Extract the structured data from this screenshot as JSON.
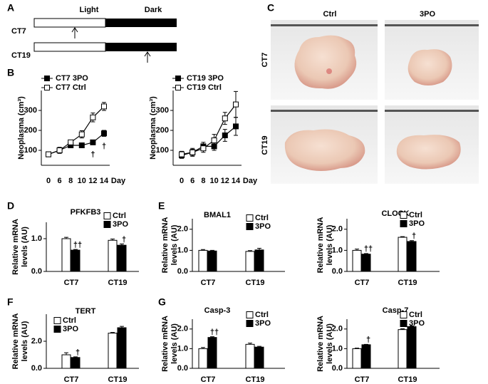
{
  "panel_a": {
    "letter": "A",
    "light": "Light",
    "dark": "Dark",
    "rows": [
      "CT7",
      "CT19"
    ]
  },
  "panel_c": {
    "letter": "C",
    "columns": [
      "Ctrl",
      "3PO"
    ],
    "rows": [
      "CT7",
      "CT19"
    ]
  },
  "letters": [
    "B",
    "D",
    "E",
    "F",
    "G"
  ],
  "chart_data": [
    {
      "type": "line",
      "categories": [
        "0",
        "6",
        "8",
        "10",
        "12",
        "14"
      ],
      "xlabel": "Day",
      "ylabel": "Neoplasma (cm³)",
      "ylim": [
        25,
        400
      ],
      "yticks": [
        100,
        200,
        300
      ],
      "series": [
        {
          "name": "CT7 3PO",
          "color": "#000000",
          "values": [
            80,
            100,
            125,
            125,
            140,
            185
          ],
          "errors": [
            8,
            12,
            12,
            10,
            12,
            15
          ]
        },
        {
          "name": "CT7 Ctrl",
          "color": "#ffffff",
          "values": [
            80,
            100,
            140,
            180,
            265,
            320
          ],
          "errors": [
            8,
            15,
            12,
            18,
            22,
            20
          ]
        }
      ],
      "annotations": [
        "†",
        "†"
      ]
    },
    {
      "type": "line",
      "categories": [
        "0",
        "6",
        "8",
        "10",
        "12",
        "14"
      ],
      "xlabel": "Day",
      "ylabel": "Neoplasma (cm³)",
      "ylim": [
        25,
        400
      ],
      "yticks": [
        100,
        200,
        300
      ],
      "series": [
        {
          "name": "CT19 3PO",
          "color": "#000000",
          "values": [
            75,
            90,
            120,
            120,
            175,
            220
          ],
          "errors": [
            15,
            15,
            20,
            20,
            30,
            45
          ]
        },
        {
          "name": "CT19 Ctrl",
          "color": "#ffffff",
          "values": [
            80,
            90,
            110,
            150,
            260,
            330
          ],
          "errors": [
            15,
            20,
            20,
            30,
            30,
            65
          ]
        }
      ],
      "annotations": []
    },
    {
      "type": "bar",
      "title": "PFKFB3",
      "ylabel": [
        "Relative mRNA",
        "levels (AU)"
      ],
      "categories": [
        "CT7",
        "CT19"
      ],
      "ylim": [
        0,
        1.5
      ],
      "yticks": [
        {
          "value": 0,
          "label": "0.0"
        },
        {
          "value": 1,
          "label": "1.0"
        }
      ],
      "series": [
        {
          "name": "Ctrl",
          "color": "#ffffff",
          "values": [
            1.0,
            0.95
          ],
          "errors": [
            0.04,
            0.04
          ]
        },
        {
          "name": "3PO",
          "color": "#000000",
          "values": [
            0.65,
            0.8
          ],
          "errors": [
            0.02,
            0.04
          ]
        }
      ],
      "annotations": [
        "††",
        "†"
      ]
    },
    {
      "type": "bar",
      "title": "BMAL1",
      "ylabel": [
        "Relative mRNA",
        "levels (AU)"
      ],
      "categories": [
        "CT7",
        "CT19"
      ],
      "ylim": [
        0,
        2.5
      ],
      "yticks": [
        {
          "value": 0,
          "label": "0.0"
        },
        {
          "value": 1,
          "label": "1.0"
        },
        {
          "value": 2,
          "label": "2.0"
        }
      ],
      "series": [
        {
          "name": "Ctrl",
          "color": "#ffffff",
          "values": [
            1.0,
            0.95
          ],
          "errors": [
            0.04,
            0.04
          ]
        },
        {
          "name": "3PO",
          "color": "#000000",
          "values": [
            0.97,
            1.02
          ],
          "errors": [
            0.03,
            0.08
          ]
        }
      ],
      "annotations": []
    },
    {
      "type": "bar",
      "title": "CLOCK",
      "ylabel": [
        "Relative mRNA",
        "levels (AU)"
      ],
      "categories": [
        "CT7",
        "CT19"
      ],
      "ylim": [
        0,
        2.5
      ],
      "yticks": [
        {
          "value": 0,
          "label": "0.0"
        },
        {
          "value": 1,
          "label": "1.0"
        },
        {
          "value": 2,
          "label": "2.0"
        }
      ],
      "series": [
        {
          "name": "Ctrl",
          "color": "#ffffff",
          "values": [
            1.0,
            1.62
          ],
          "errors": [
            0.06,
            0.03
          ]
        },
        {
          "name": "3PO",
          "color": "#000000",
          "values": [
            0.82,
            1.42
          ],
          "errors": [
            0.03,
            0.04
          ]
        }
      ],
      "annotations": [
        "††",
        "†"
      ]
    },
    {
      "type": "bar",
      "title": "TERT",
      "ylabel": [
        "Relative mRNA",
        "levels (AU)"
      ],
      "categories": [
        "CT7",
        "CT19"
      ],
      "ylim": [
        0,
        4
      ],
      "yticks": [
        {
          "value": 0,
          "label": "0.0"
        },
        {
          "value": 2,
          "label": "2.0"
        }
      ],
      "series": [
        {
          "name": "Ctrl",
          "color": "#ffffff",
          "values": [
            1.0,
            2.6
          ],
          "errors": [
            0.15,
            0.05
          ]
        },
        {
          "name": "3PO",
          "color": "#000000",
          "values": [
            0.8,
            3.0
          ],
          "errors": [
            0.05,
            0.1
          ]
        }
      ],
      "annotations": [
        "†"
      ]
    },
    {
      "type": "bar",
      "title": "Casp-3",
      "ylabel": [
        "Relative mRNA",
        "levels (AU)"
      ],
      "categories": [
        "CT7",
        "CT19"
      ],
      "ylim": [
        0,
        2.5
      ],
      "yticks": [
        {
          "value": 0,
          "label": "0.0"
        },
        {
          "value": 1,
          "label": "1.0"
        },
        {
          "value": 2,
          "label": "2.0"
        }
      ],
      "series": [
        {
          "name": "Ctrl",
          "color": "#ffffff",
          "values": [
            1.0,
            1.22
          ],
          "errors": [
            0.06,
            0.06
          ]
        },
        {
          "name": "3PO",
          "color": "#000000",
          "values": [
            1.57,
            1.08
          ],
          "errors": [
            0.04,
            0.04
          ]
        }
      ],
      "annotations": [
        "††"
      ]
    },
    {
      "type": "bar",
      "title": "Casp-7",
      "ylabel": [
        "Relative mRNA",
        "levels (AU)"
      ],
      "categories": [
        "CT7",
        "CT19"
      ],
      "ylim": [
        0,
        2.5
      ],
      "yticks": [
        {
          "value": 0,
          "label": "0.0"
        },
        {
          "value": 1,
          "label": "1.0"
        },
        {
          "value": 2,
          "label": "2.0"
        }
      ],
      "series": [
        {
          "name": "Ctrl",
          "color": "#ffffff",
          "values": [
            1.0,
            1.97
          ],
          "errors": [
            0.03,
            0.04
          ]
        },
        {
          "name": "3PO",
          "color": "#000000",
          "values": [
            1.2,
            2.12
          ],
          "errors": [
            0.02,
            0.04
          ]
        }
      ],
      "annotations": [
        "†"
      ]
    }
  ]
}
